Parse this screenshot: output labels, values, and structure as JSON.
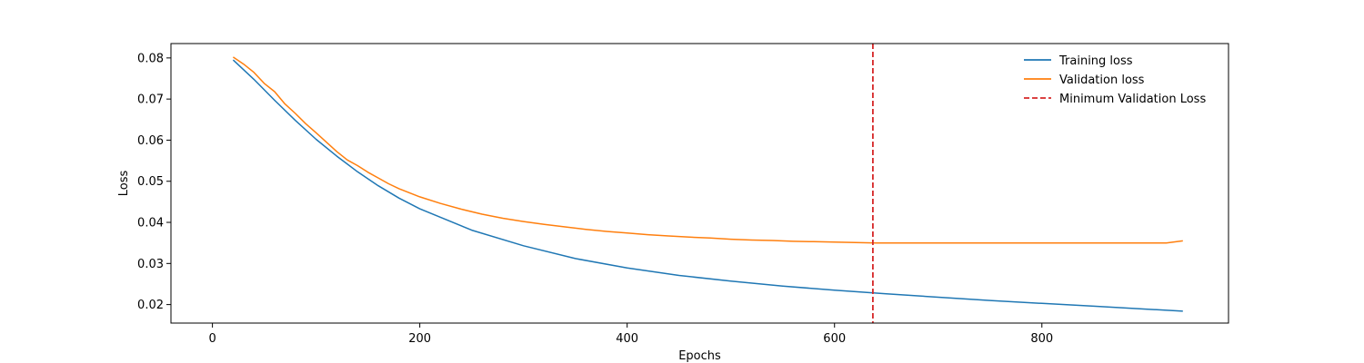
{
  "chart_data": {
    "type": "line",
    "xlabel": "Epochs",
    "ylabel": "Loss",
    "xlim": [
      -40,
      980
    ],
    "ylim": [
      0.0155,
      0.0835
    ],
    "x_ticks": [
      0,
      200,
      400,
      600,
      800
    ],
    "y_ticks": [
      0.02,
      0.03,
      0.04,
      0.05,
      0.06,
      0.07,
      0.08
    ],
    "x_tick_labels": [
      "0",
      "200",
      "400",
      "600",
      "800"
    ],
    "y_tick_labels": [
      "0.02",
      "0.03",
      "0.04",
      "0.05",
      "0.06",
      "0.07",
      "0.08"
    ],
    "grid": false,
    "legend_position": "top-right",
    "series": [
      {
        "name": "Training loss",
        "color": "#1f77b4",
        "style": "solid",
        "x": [
          20,
          40,
          60,
          80,
          100,
          120,
          140,
          160,
          180,
          200,
          250,
          300,
          350,
          400,
          450,
          500,
          550,
          600,
          650,
          700,
          750,
          800,
          850,
          900,
          936
        ],
        "y": [
          0.0795,
          0.0748,
          0.0697,
          0.0648,
          0.0602,
          0.0561,
          0.0523,
          0.0489,
          0.0459,
          0.0433,
          0.0381,
          0.0343,
          0.0312,
          0.0289,
          0.0271,
          0.0257,
          0.0245,
          0.0235,
          0.0226,
          0.0218,
          0.021,
          0.0203,
          0.0196,
          0.0189,
          0.0184
        ]
      },
      {
        "name": "Validation loss",
        "color": "#ff7f0e",
        "style": "solid",
        "x": [
          20,
          30,
          40,
          50,
          60,
          70,
          80,
          90,
          100,
          110,
          120,
          130,
          140,
          150,
          160,
          170,
          180,
          190,
          200,
          220,
          240,
          260,
          280,
          300,
          320,
          340,
          360,
          380,
          400,
          420,
          440,
          460,
          480,
          500,
          520,
          540,
          560,
          580,
          600,
          620,
          640,
          660,
          680,
          700,
          720,
          740,
          760,
          780,
          800,
          820,
          840,
          860,
          880,
          900,
          920,
          936
        ],
        "y": [
          0.0802,
          0.0785,
          0.0765,
          0.0738,
          0.0718,
          0.0688,
          0.0665,
          0.064,
          0.0618,
          0.0595,
          0.0572,
          0.0552,
          0.0538,
          0.0522,
          0.0508,
          0.0494,
          0.0482,
          0.0472,
          0.0462,
          0.0446,
          0.0432,
          0.042,
          0.041,
          0.0402,
          0.0395,
          0.0389,
          0.0383,
          0.0378,
          0.0374,
          0.037,
          0.0367,
          0.0364,
          0.0362,
          0.0359,
          0.0357,
          0.0356,
          0.0354,
          0.0353,
          0.0352,
          0.0351,
          0.035,
          0.035,
          0.035,
          0.035,
          0.035,
          0.035,
          0.035,
          0.035,
          0.035,
          0.035,
          0.035,
          0.035,
          0.035,
          0.035,
          0.035,
          0.0355
        ]
      }
    ],
    "vlines": [
      {
        "name": "Minimum Validation Loss",
        "x": 637,
        "color": "#d62728",
        "style": "dashed"
      }
    ]
  }
}
